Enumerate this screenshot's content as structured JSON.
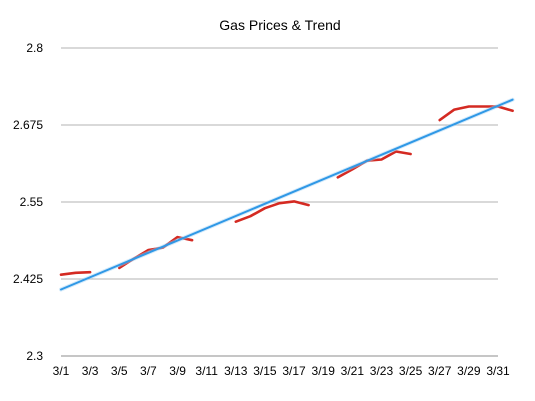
{
  "chart_data": {
    "type": "line",
    "title": "Gas Prices & Trend",
    "xlabel": "",
    "ylabel": "",
    "ylim": [
      2.3,
      2.8
    ],
    "yticks": [
      "2.3",
      "2.425",
      "2.55",
      "2.675",
      "2.8"
    ],
    "ytick_values": [
      2.3,
      2.425,
      2.55,
      2.675,
      2.8
    ],
    "x_days": [
      1,
      31
    ],
    "xtick_labels": [
      "3/1",
      "3/3",
      "3/5",
      "3/7",
      "3/9",
      "3/11",
      "3/13",
      "3/15",
      "3/17",
      "3/19",
      "3/21",
      "3/23",
      "3/25",
      "3/27",
      "3/29",
      "3/31"
    ],
    "xtick_days": [
      1,
      3,
      5,
      7,
      9,
      11,
      13,
      15,
      17,
      19,
      21,
      23,
      25,
      27,
      29,
      31
    ],
    "grid": true,
    "colors": {
      "price": "#d42a22",
      "trend": "#2f98e6",
      "trend_glow": "#9fd0f5"
    },
    "series": [
      {
        "role": "price",
        "segments": [
          [
            [
              1,
              2.432
            ],
            [
              2,
              2.435
            ],
            [
              3,
              2.436
            ]
          ],
          [
            [
              5,
              2.443
            ],
            [
              6,
              2.458
            ],
            [
              7,
              2.472
            ],
            [
              8,
              2.476
            ],
            [
              9,
              2.493
            ],
            [
              10,
              2.488
            ]
          ],
          [
            [
              13,
              2.518
            ],
            [
              14,
              2.527
            ],
            [
              15,
              2.54
            ],
            [
              16,
              2.548
            ],
            [
              17,
              2.551
            ],
            [
              18,
              2.545
            ]
          ],
          [
            [
              20,
              2.59
            ],
            [
              21,
              2.603
            ],
            [
              22,
              2.617
            ],
            [
              23,
              2.619
            ],
            [
              24,
              2.632
            ],
            [
              25,
              2.628
            ]
          ],
          [
            [
              27,
              2.683
            ],
            [
              28,
              2.7
            ],
            [
              29,
              2.705
            ],
            [
              30,
              2.705
            ],
            [
              31,
              2.705
            ],
            [
              32,
              2.698
            ]
          ]
        ]
      },
      {
        "role": "trend",
        "points": [
          [
            1,
            2.408
          ],
          [
            32,
            2.716
          ]
        ]
      }
    ]
  }
}
